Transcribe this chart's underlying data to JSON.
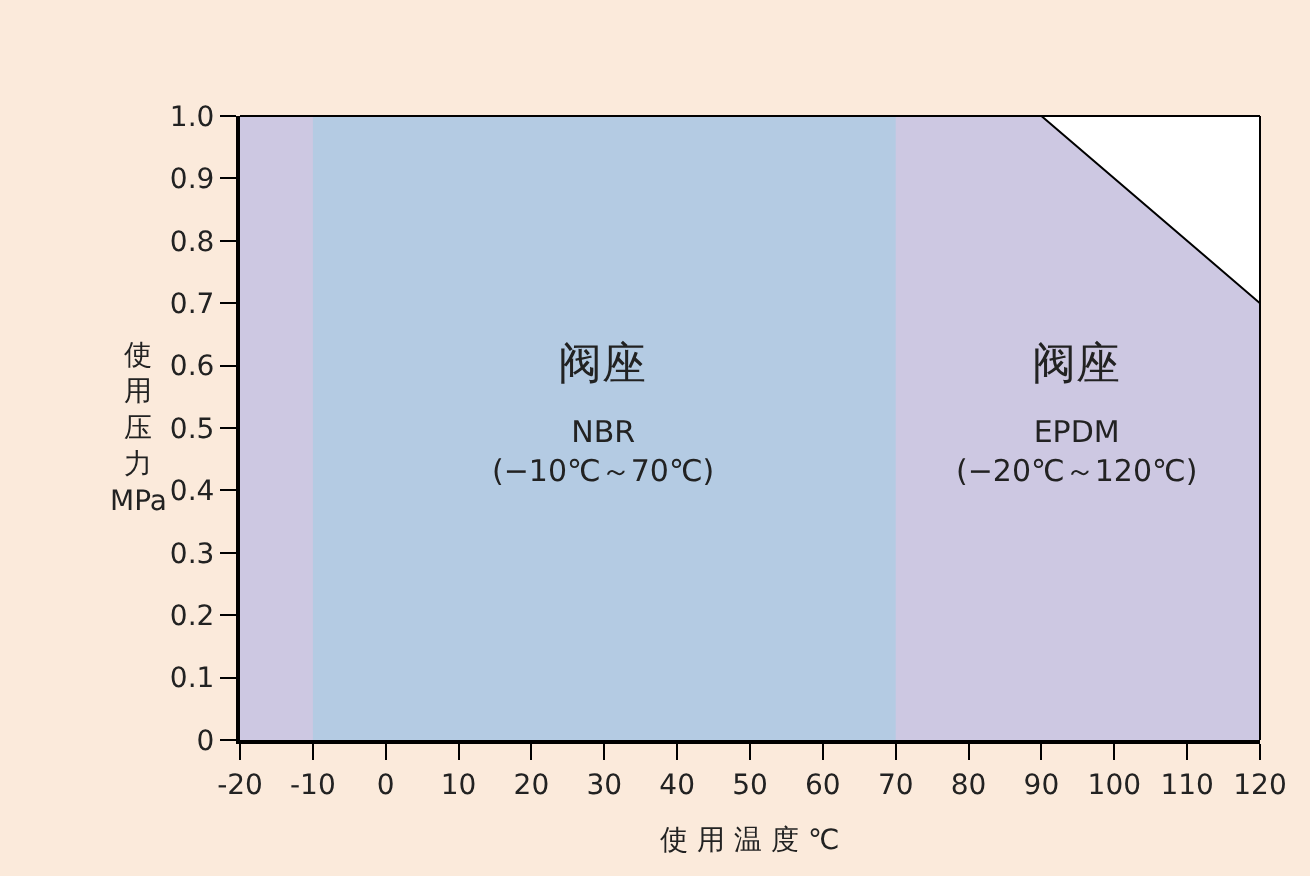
{
  "chart_data": {
    "type": "area",
    "xlabel": "使 用 温 度 ℃",
    "ylabel": "使用压力MPa",
    "series": [
      {
        "color": "#cdc8e2",
        "x": [
          -20,
          90,
          120
        ],
        "values": [
          1,
          1,
          0.7
        ]
      },
      {
        "color": "#b4cbe3",
        "x": [
          -10,
          70
        ],
        "values": [
          1,
          1
        ]
      }
    ],
    "xlim": [
      -20,
      120
    ],
    "xticks": [
      -20,
      -10,
      0,
      10,
      20,
      30,
      40,
      50,
      60,
      70,
      80,
      90,
      100,
      110,
      120
    ],
    "ylim": [
      0,
      1
    ],
    "yticks": [
      0,
      0.1,
      0.2,
      0.3,
      0.4,
      0.5,
      0.6,
      0.7,
      0.8,
      0.9,
      {
        "value": 1,
        "label": "1.0"
      }
    ],
    "annotations": [
      "阀座",
      "NBR\n(−10℃～70℃)",
      "阀座",
      "EPDM\n(−20℃～120℃)"
    ]
  }
}
